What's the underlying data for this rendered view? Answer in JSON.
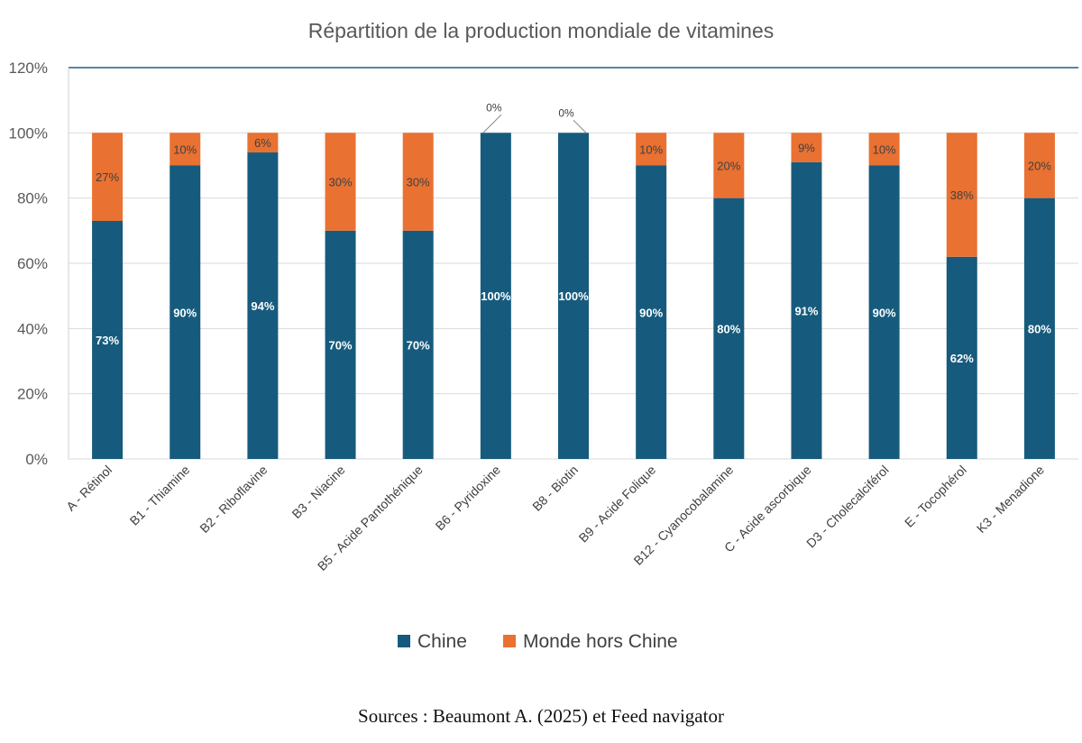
{
  "chart_data": {
    "type": "bar",
    "stacked": true,
    "title": "Répartition de la production mondiale de vitamines",
    "categories": [
      "A - Rétinol",
      "B1 - Thiamine",
      "B2 - Riboflavine",
      "B3 - Niacine",
      "B5 - Acide Pantothénique",
      "B6 - Pyridoxine",
      "B8 - Biotin",
      "B9 - Acide Folique",
      "B12 - Cyanocobalamine",
      "C - Acide ascorbique",
      "D3 - Cholecalciférol",
      "E - Tocophérol",
      "K3 - Menadione"
    ],
    "series": [
      {
        "name": "Chine",
        "color": "#165b7d",
        "values": [
          73,
          90,
          94,
          70,
          70,
          100,
          100,
          90,
          80,
          91,
          90,
          62,
          80
        ],
        "labels": [
          "73%",
          "90%",
          "94%",
          "70%",
          "70%",
          "100%",
          "100%",
          "90%",
          "80%",
          "91%",
          "90%",
          "62%",
          "80%"
        ]
      },
      {
        "name": "Monde hors Chine",
        "color": "#e97132",
        "values": [
          27,
          10,
          6,
          30,
          30,
          0,
          0,
          10,
          20,
          9,
          10,
          38,
          20
        ],
        "labels": [
          "27%",
          "10%",
          "6%",
          "30%",
          "30%",
          "0%",
          "0%",
          "10%",
          "20%",
          "9%",
          "10%",
          "38%",
          "20%"
        ]
      }
    ],
    "ylim": [
      0,
      120
    ],
    "yticks": [
      "0%",
      "20%",
      "40%",
      "60%",
      "80%",
      "100%",
      "120%"
    ],
    "grid": true,
    "legend": "bottom"
  },
  "source_note": "Sources : Beaumont A. (2025) et Feed navigator"
}
